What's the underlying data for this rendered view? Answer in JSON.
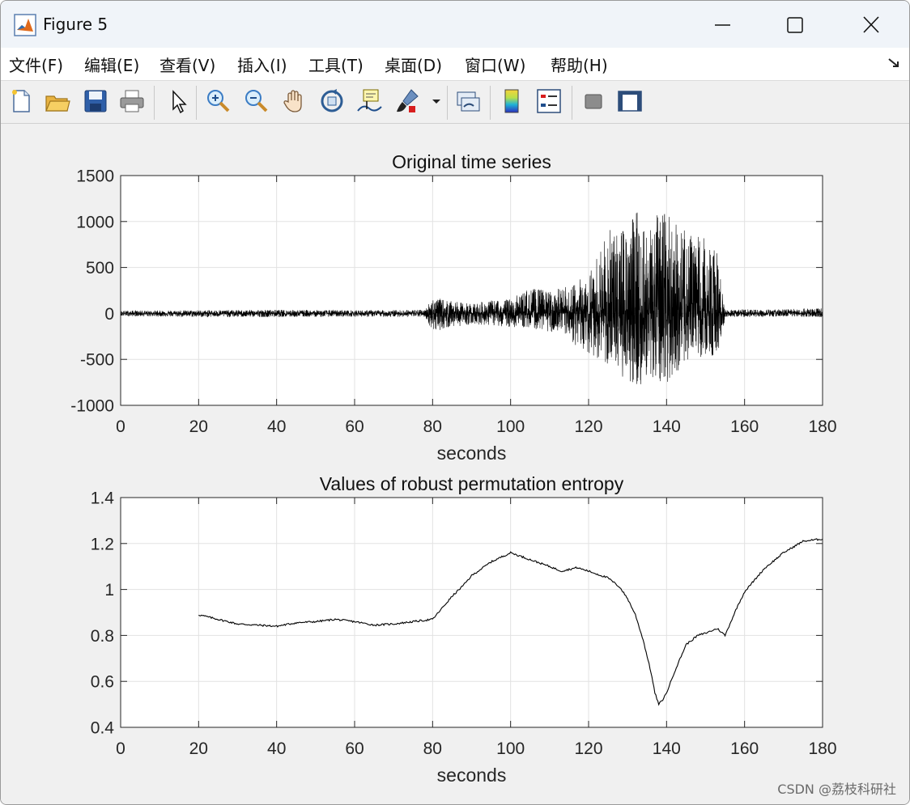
{
  "window": {
    "title": "Figure 5"
  },
  "menu": {
    "items": [
      {
        "label": "文件(F)"
      },
      {
        "label": "编辑(E)"
      },
      {
        "label": "查看(V)"
      },
      {
        "label": "插入(I)"
      },
      {
        "label": "工具(T)"
      },
      {
        "label": "桌面(D)"
      },
      {
        "label": "窗口(W)"
      },
      {
        "label": "帮助(H)"
      }
    ]
  },
  "toolbar": {
    "icons": [
      "new-figure-icon",
      "open-file-icon",
      "save-icon",
      "print-icon",
      "select-arrow-icon",
      "zoom-in-icon",
      "zoom-out-icon",
      "pan-hand-icon",
      "rotate-3d-icon",
      "data-cursor-icon",
      "brush-icon",
      "link-plot-icon",
      "colorbar-icon",
      "legend-icon",
      "hide-plot-tools-icon",
      "show-plot-tools-icon"
    ]
  },
  "colors": {
    "line": "#000000",
    "grid": "#e2e2e2",
    "axes_bg": "#ffffff",
    "figure_bg": "#f0f0f0"
  },
  "watermark": "CSDN @荔枝科研社",
  "chart_data": [
    {
      "type": "line",
      "title": "Original time series",
      "xlabel": "seconds",
      "ylabel": "",
      "xlim": [
        0,
        180
      ],
      "ylim": [
        -1000,
        1500
      ],
      "xticks": [
        0,
        20,
        40,
        60,
        80,
        100,
        120,
        140,
        160,
        180
      ],
      "yticks": [
        -1000,
        -500,
        0,
        500,
        1000,
        1500
      ],
      "grid": true,
      "series": [
        {
          "description_points": "approximate amplitude envelope of the noise-like signal (seconds, peak value)",
          "envelope_x": [
            0,
            20,
            40,
            60,
            78,
            80,
            85,
            90,
            95,
            100,
            105,
            110,
            115,
            120,
            122,
            125,
            130,
            133,
            135,
            138,
            140,
            143,
            145,
            148,
            150,
            153,
            154,
            155,
            160,
            170,
            180
          ],
          "envelope_pos": [
            30,
            35,
            40,
            35,
            40,
            180,
            130,
            110,
            140,
            160,
            280,
            250,
            300,
            450,
            620,
            900,
            960,
            1220,
            1000,
            1080,
            1120,
            950,
            900,
            850,
            850,
            650,
            350,
            40,
            45,
            45,
            60
          ],
          "envelope_neg": [
            -30,
            -40,
            -40,
            -35,
            -40,
            -200,
            -150,
            -120,
            -130,
            -150,
            -160,
            -200,
            -300,
            -450,
            -480,
            -600,
            -740,
            -800,
            -680,
            -780,
            -760,
            -620,
            -560,
            -500,
            -480,
            -450,
            -320,
            -40,
            -40,
            -40,
            -40
          ]
        }
      ]
    },
    {
      "type": "line",
      "title": "Values of robust permutation entropy",
      "xlabel": "seconds",
      "ylabel": "",
      "xlim": [
        0,
        180
      ],
      "ylim": [
        0.4,
        1.4
      ],
      "xticks": [
        0,
        20,
        40,
        60,
        80,
        100,
        120,
        140,
        160,
        180
      ],
      "yticks": [
        0.4,
        0.6,
        0.8,
        1,
        1.2,
        1.4
      ],
      "ytick_labels": [
        "0.4",
        "0.6",
        "0.8",
        "1",
        "1.2",
        "1.4"
      ],
      "grid": true,
      "series": [
        {
          "x": [
            20,
            25,
            30,
            35,
            40,
            45,
            50,
            55,
            60,
            65,
            70,
            75,
            80,
            82,
            85,
            88,
            90,
            95,
            100,
            105,
            110,
            113,
            117,
            120,
            125,
            128,
            130,
            132,
            134,
            136,
            137,
            138,
            139,
            140,
            142,
            145,
            148,
            150,
            153,
            155,
            158,
            160,
            165,
            170,
            175,
            180
          ],
          "y": [
            0.89,
            0.87,
            0.85,
            0.845,
            0.84,
            0.855,
            0.86,
            0.87,
            0.86,
            0.845,
            0.85,
            0.86,
            0.87,
            0.91,
            0.97,
            1.02,
            1.06,
            1.12,
            1.16,
            1.13,
            1.1,
            1.08,
            1.095,
            1.08,
            1.05,
            1.01,
            0.96,
            0.89,
            0.78,
            0.64,
            0.55,
            0.5,
            0.52,
            0.55,
            0.64,
            0.76,
            0.8,
            0.81,
            0.83,
            0.8,
            0.92,
            0.99,
            1.09,
            1.16,
            1.21,
            1.22
          ]
        }
      ]
    }
  ]
}
